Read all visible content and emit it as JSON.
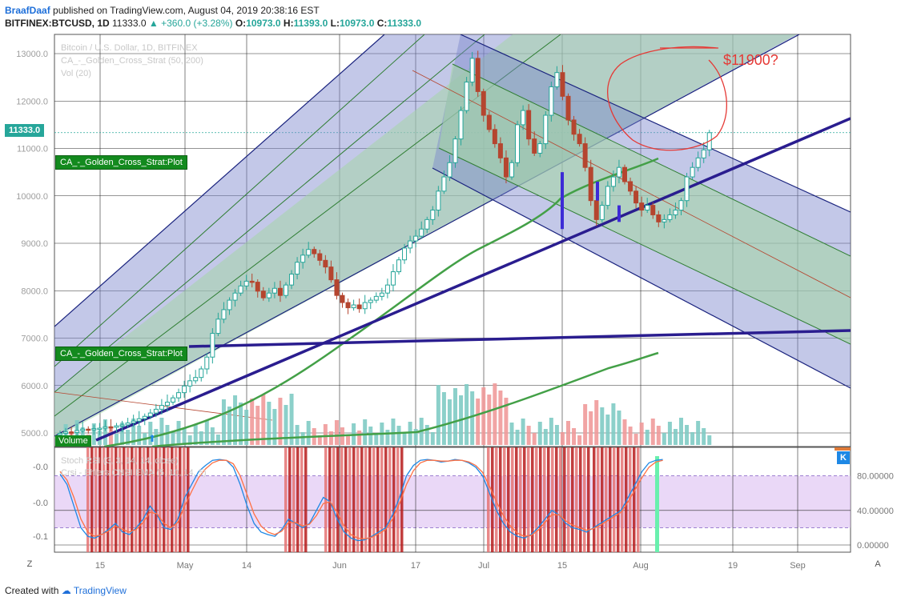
{
  "header": {
    "author": "BraafDaaf",
    "published": "published on TradingView.com, August 04, 2019 20:38:16 EST",
    "symbol": "BITFINEX:BTCUSD, 1D",
    "last": "11333.0",
    "change": "+360.0 (+3.28%)",
    "open_label": "O:",
    "open": "10973.0",
    "high_label": "H:",
    "high": "11393.0",
    "low_label": "L:",
    "low": "10973.0",
    "close_label": "C:",
    "close": "11333.0"
  },
  "legend": {
    "main": "Bitcoin / U.S. Dollar, 1D, BITFINEX",
    "strategy": "CA_-_Golden_Cross_Strat (50, 200)",
    "volume": "Vol (20)"
  },
  "labels": {
    "plot1": "CA_-_Golden_Cross_Strat:Plot",
    "plot2": "CA_-_Golden_Cross_Strat:Plot",
    "volume": "Volume",
    "price_tag": "11333.0",
    "annotation": "$11900?",
    "k_badge": "K",
    "stoch_legend": "Stoch RSI (3, 3, 14, 14, close)",
    "crsi_legend": "Crsi - Ehlers CNSI EMA (5, 10, 14, 5)"
  },
  "footer": {
    "created": "Created with",
    "brand": "TradingView"
  },
  "corner": {
    "left": "Z",
    "right": "A"
  },
  "colors": {
    "up": "#26a69a",
    "down": "#b5452f",
    "blue_fib": "#1a237e",
    "green_fib": "#2e7d32",
    "ma": "#43a047",
    "trend": "#2a1d8f",
    "annotation": "#e53935"
  },
  "chart_data": [
    {
      "type": "candlestick",
      "title": "Bitcoin / U.S. Dollar, 1D, BITFINEX",
      "y_ticks": [
        "5000.0",
        "6000.0",
        "7000.0",
        "8000.0",
        "9000.0",
        "10000.0",
        "11000.0",
        "12000.0",
        "13000.0"
      ],
      "x_ticks": [
        "15",
        "May",
        "14",
        "Jun",
        "17",
        "Jul",
        "15",
        "Aug",
        "19",
        "Sep"
      ],
      "ylim": [
        4700,
        13400
      ],
      "x_start": "2019-04-05",
      "close": [
        4990,
        5020,
        5010,
        5050,
        5080,
        5070,
        5090,
        5100,
        5130,
        5120,
        5150,
        5170,
        5210,
        5250,
        5300,
        5350,
        5420,
        5500,
        5580,
        5650,
        5740,
        5850,
        5990,
        6100,
        6170,
        6350,
        6600,
        7100,
        7400,
        7600,
        7800,
        7950,
        8100,
        8200,
        8180,
        7990,
        7850,
        7950,
        8050,
        7900,
        8120,
        8350,
        8600,
        8750,
        8870,
        8780,
        8640,
        8500,
        8230,
        7900,
        7750,
        7640,
        7700,
        7620,
        7750,
        7800,
        7880,
        7950,
        8120,
        8400,
        8650,
        8900,
        9050,
        9150,
        9300,
        9500,
        9700,
        10100,
        10400,
        10700,
        11200,
        11800,
        12400,
        12900,
        12200,
        11700,
        11400,
        11100,
        10800,
        10400,
        10700,
        11500,
        11800,
        11200,
        10900,
        11100,
        11700,
        12300,
        12600,
        12100,
        11600,
        11300,
        11100,
        10600,
        9900,
        9500,
        9800,
        10200,
        10400,
        10600,
        10300,
        10100,
        9850,
        9700,
        9800,
        9600,
        9450,
        9500,
        9600,
        9700,
        9900,
        10400,
        10600,
        10800,
        10970,
        11333
      ],
      "extra_overlays": [
        "blue fib channel up",
        "blue fib channel down",
        "green fib channel",
        "trend lines",
        "golden cross MA"
      ],
      "annotation": "$11900?"
    },
    {
      "type": "line",
      "title": "Stoch RSI (3, 3, 14, 14, close)",
      "y_ticks_right": [
        "80.00000",
        "40.00000",
        "0.00000"
      ],
      "y_ticks_left": [
        "-0.0",
        "-0.0",
        "-0.1"
      ],
      "ylim": [
        -10,
        110
      ],
      "series": [
        {
          "values": [
            82,
            70,
            45,
            20,
            10,
            8,
            12,
            18,
            25,
            15,
            12,
            20,
            30,
            45,
            35,
            20,
            18,
            30,
            55,
            70,
            85,
            92,
            98,
            99,
            98,
            90,
            70,
            45,
            25,
            15,
            12,
            10,
            18,
            30,
            25,
            20,
            25,
            40,
            55,
            50,
            30,
            15,
            8,
            5,
            6,
            10,
            15,
            20,
            35,
            55,
            80,
            92,
            98,
            99,
            98,
            96,
            97,
            99,
            98,
            95,
            90,
            80,
            60,
            40,
            25,
            15,
            10,
            8,
            12,
            20,
            30,
            40,
            35,
            25,
            20,
            18,
            15,
            20,
            25,
            30,
            35,
            40,
            55,
            70,
            85,
            95,
            98,
            99
          ]
        },
        {
          "values": [
            85,
            75,
            55,
            30,
            15,
            10,
            12,
            16,
            22,
            18,
            15,
            18,
            26,
            38,
            36,
            25,
            20,
            26,
            45,
            62,
            78,
            88,
            95,
            98,
            98,
            94,
            80,
            58,
            36,
            22,
            15,
            12,
            16,
            26,
            26,
            22,
            24,
            34,
            48,
            50,
            38,
            22,
            12,
            8,
            7,
            9,
            13,
            18,
            30,
            48,
            70,
            86,
            95,
            98,
            98,
            97,
            97,
            98,
            98,
            96,
            92,
            84,
            68,
            50,
            34,
            22,
            14,
            10,
            11,
            17,
            26,
            35,
            35,
            28,
            23,
            20,
            17,
            19,
            23,
            28,
            33,
            38,
            50,
            64,
            78,
            90,
            96,
            98
          ]
        }
      ],
      "band": [
        20,
        80
      ]
    }
  ]
}
